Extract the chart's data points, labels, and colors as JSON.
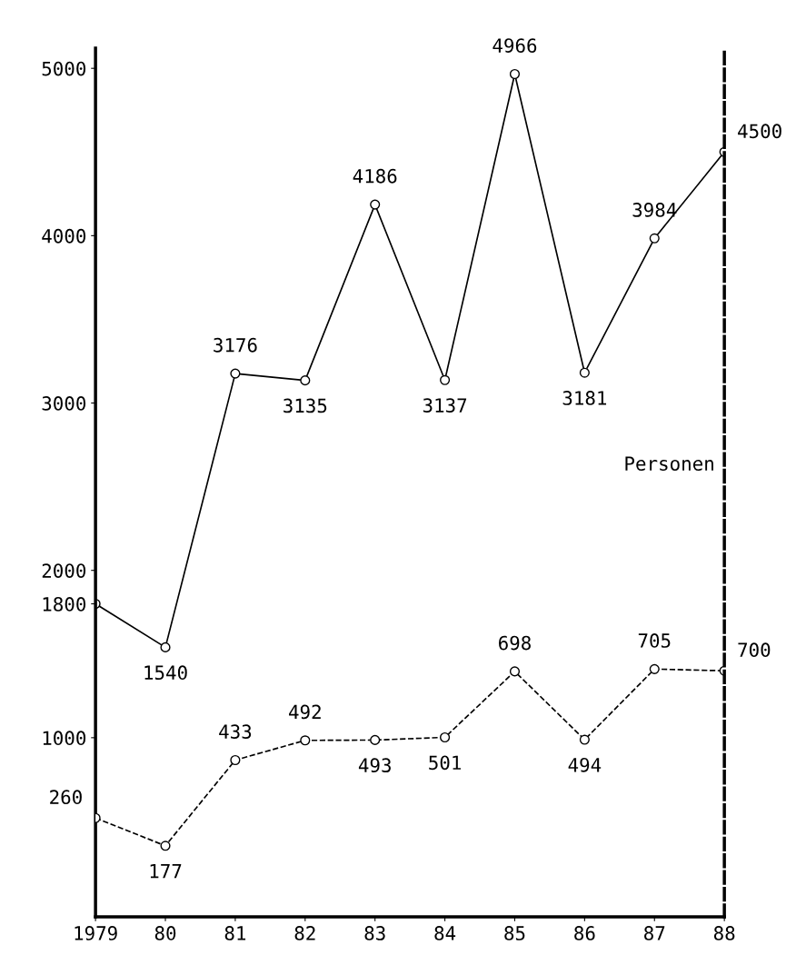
{
  "chart_data": {
    "type": "line",
    "categories": [
      "1979",
      "80",
      "81",
      "82",
      "83",
      "84",
      "85",
      "86",
      "87",
      "88"
    ],
    "series": [
      {
        "color": "#000000",
        "line_style": "solid",
        "values": [
          1800,
          1540,
          3176,
          3135,
          4186,
          3137,
          4966,
          3181,
          3984,
          4500
        ],
        "value_labels": [
          null,
          "1540",
          "3176",
          "3135",
          "4186",
          "3137",
          "4966",
          "3181",
          "3984",
          "4500"
        ]
      },
      {
        "color": "#000000",
        "line_style": "dashed",
        "axis": "y2",
        "values": [
          260,
          177,
          433,
          492,
          493,
          501,
          698,
          494,
          705,
          700
        ],
        "value_labels": [
          "260",
          "177",
          "433",
          "492",
          "493",
          "501",
          "698",
          "494",
          "705",
          "700"
        ]
      }
    ],
    "ylim": [
      -70,
      5120
    ],
    "yticks": [
      1000,
      1800,
      2000,
      3000,
      4000,
      5000
    ],
    "y2lim": [
      -35,
      2560
    ],
    "y2label": "Personen",
    "marker": "circle",
    "grid": false
  }
}
